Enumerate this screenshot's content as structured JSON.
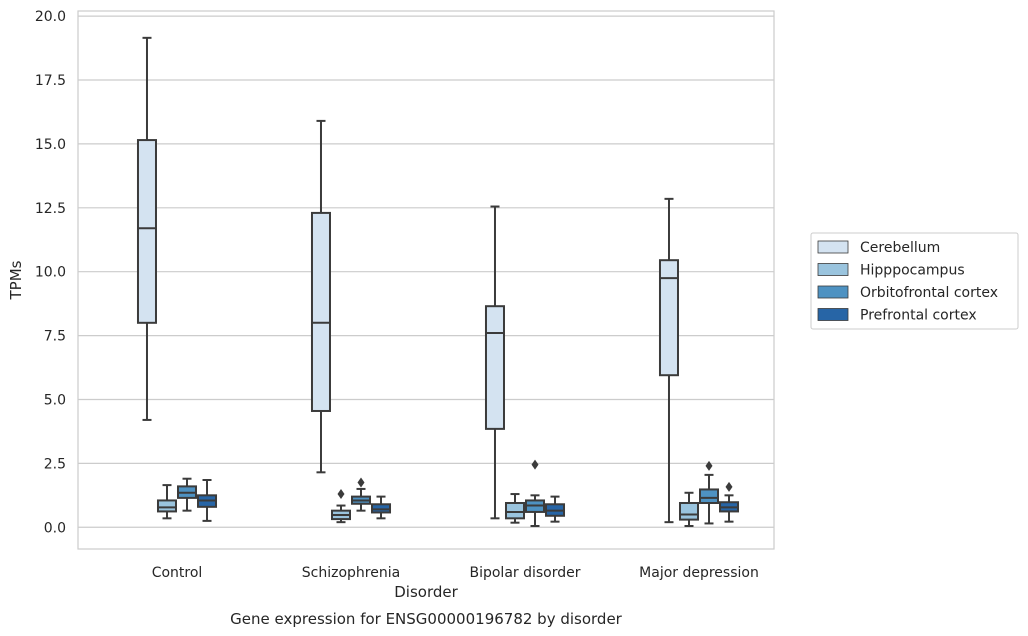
{
  "chart_data": {
    "type": "box",
    "caption": "Gene expression for ENSG00000196782 by disorder",
    "xlabel": "Disorder",
    "ylabel": "TPMs",
    "ylim": [
      -0.85,
      20.2
    ],
    "yticks": [
      "0.0",
      "2.5",
      "5.0",
      "7.5",
      "10.0",
      "12.5",
      "15.0",
      "17.5",
      "20.0"
    ],
    "categories": [
      "Control",
      "Schizophrenia",
      "Bipolar disorder",
      "Major depression"
    ],
    "grid": true,
    "legend_position": "right",
    "series": [
      {
        "name": "Cerebellum",
        "color": "#d4e3f1",
        "boxes": [
          {
            "whislo": 4.2,
            "q1": 8.0,
            "med": 11.7,
            "q3": 15.15,
            "whishi": 19.15,
            "fliers": []
          },
          {
            "whislo": 2.15,
            "q1": 4.55,
            "med": 8.0,
            "q3": 12.3,
            "whishi": 15.9,
            "fliers": []
          },
          {
            "whislo": 0.35,
            "q1": 3.85,
            "med": 7.6,
            "q3": 8.65,
            "whishi": 12.55,
            "fliers": []
          },
          {
            "whislo": 0.2,
            "q1": 5.95,
            "med": 9.75,
            "q3": 10.45,
            "whishi": 12.85,
            "fliers": []
          }
        ]
      },
      {
        "name": "Hipppocampus",
        "color": "#9ac4de",
        "boxes": [
          {
            "whislo": 0.35,
            "q1": 0.62,
            "med": 0.78,
            "q3": 1.05,
            "whishi": 1.65,
            "fliers": []
          },
          {
            "whislo": 0.2,
            "q1": 0.32,
            "med": 0.48,
            "q3": 0.65,
            "whishi": 0.85,
            "fliers": [
              1.3
            ]
          },
          {
            "whislo": 0.18,
            "q1": 0.35,
            "med": 0.6,
            "q3": 0.95,
            "whishi": 1.3,
            "fliers": []
          },
          {
            "whislo": 0.05,
            "q1": 0.3,
            "med": 0.5,
            "q3": 0.95,
            "whishi": 1.35,
            "fliers": []
          }
        ]
      },
      {
        "name": "Orbitofrontal cortex",
        "color": "#4e92c2",
        "boxes": [
          {
            "whislo": 0.65,
            "q1": 1.15,
            "med": 1.35,
            "q3": 1.6,
            "whishi": 1.9,
            "fliers": []
          },
          {
            "whislo": 0.65,
            "q1": 0.92,
            "med": 1.05,
            "q3": 1.2,
            "whishi": 1.5,
            "fliers": [
              1.75
            ]
          },
          {
            "whislo": 0.05,
            "q1": 0.6,
            "med": 0.85,
            "q3": 1.05,
            "whishi": 1.25,
            "fliers": [
              2.45
            ]
          },
          {
            "whislo": 0.15,
            "q1": 0.95,
            "med": 1.15,
            "q3": 1.48,
            "whishi": 2.05,
            "fliers": [
              2.4
            ]
          }
        ]
      },
      {
        "name": "Prefrontal cortex",
        "color": "#2765a6",
        "boxes": [
          {
            "whislo": 0.25,
            "q1": 0.8,
            "med": 1.05,
            "q3": 1.25,
            "whishi": 1.85,
            "fliers": []
          },
          {
            "whislo": 0.35,
            "q1": 0.58,
            "med": 0.7,
            "q3": 0.9,
            "whishi": 1.2,
            "fliers": []
          },
          {
            "whislo": 0.22,
            "q1": 0.45,
            "med": 0.65,
            "q3": 0.9,
            "whishi": 1.2,
            "fliers": []
          },
          {
            "whislo": 0.22,
            "q1": 0.62,
            "med": 0.78,
            "q3": 0.98,
            "whishi": 1.25,
            "fliers": [
              1.58
            ]
          }
        ]
      }
    ]
  }
}
